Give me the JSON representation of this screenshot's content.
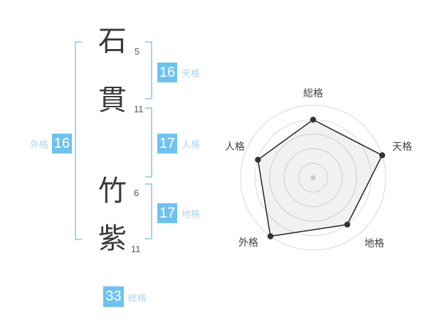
{
  "name": {
    "chars": [
      {
        "char": "石",
        "strokes": "5"
      },
      {
        "char": "貫",
        "strokes": "11"
      },
      {
        "char": "竹",
        "strokes": "6"
      },
      {
        "char": "紫",
        "strokes": "11"
      }
    ]
  },
  "kaku": {
    "tenkaku": {
      "value": "16",
      "label": "天格"
    },
    "jinkaku": {
      "value": "17",
      "label": "人格"
    },
    "chikaku": {
      "value": "17",
      "label": "地格"
    },
    "gaikaku": {
      "value": "16",
      "label": "外格"
    },
    "soukaku": {
      "value": "33",
      "label": "総格"
    }
  },
  "colors": {
    "badge_bg": "#70c2ee",
    "label_blue": "#a9d6f2",
    "bracket_blue": "#a6d4f0",
    "text_dark": "#3a3a3a",
    "stroke_gray": "#5a5a5a",
    "ring_gray": "#d9d9d9",
    "axis_label": "#404040",
    "polygon_stroke": "#2e2e2e",
    "polygon_fill": "rgba(0,0,0,0.055)",
    "dot_dark": "#333333",
    "center_dot": "#c9c9c9"
  },
  "chart_data": {
    "type": "radar",
    "axes": [
      "総格",
      "天格",
      "地格",
      "外格",
      "人格"
    ],
    "keys": [
      "soukaku",
      "tenkaku",
      "chikaku",
      "gaikaku",
      "jinkaku"
    ],
    "values": [
      4,
      5,
      4,
      5,
      4
    ],
    "max": 5,
    "rings": 5,
    "grid": "concentric-circles",
    "legend": "none",
    "title": ""
  }
}
